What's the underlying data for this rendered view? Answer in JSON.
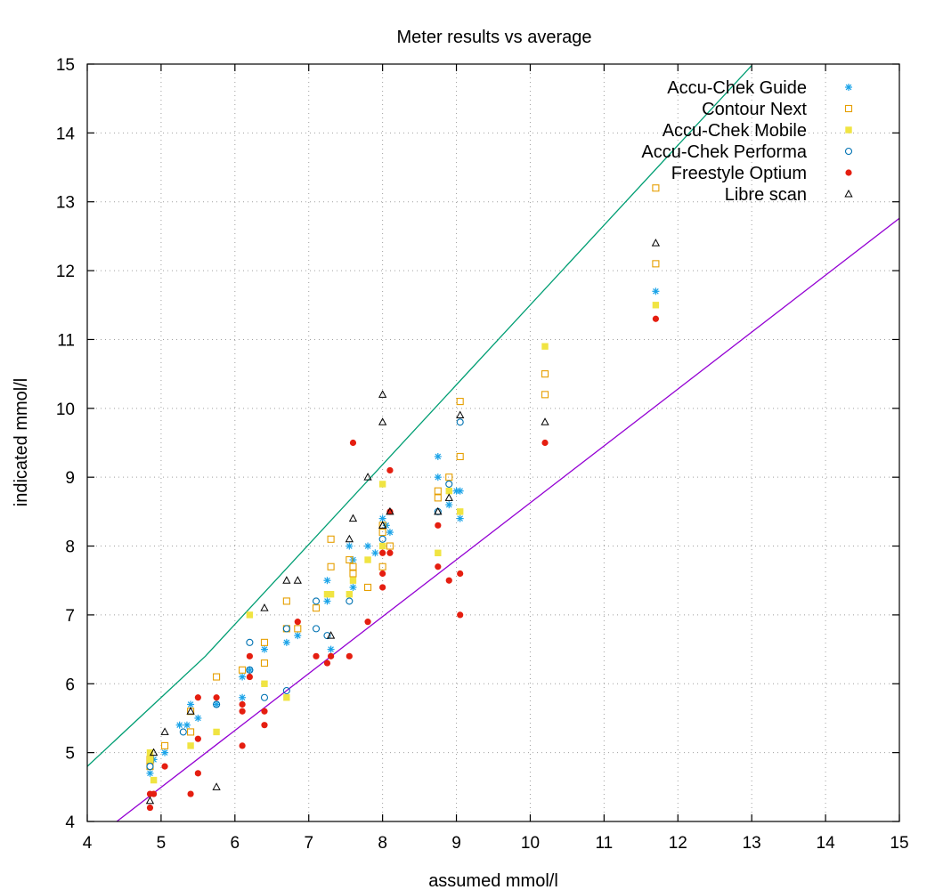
{
  "chart_data": {
    "type": "scatter",
    "title": "Meter results vs average",
    "xlabel": "assumed mmol/l",
    "ylabel": "indicated mmol/l",
    "xlim": [
      4,
      15
    ],
    "ylim": [
      4,
      15
    ],
    "xticks": [
      "4",
      "5",
      "6",
      "7",
      "8",
      "9",
      "10",
      "11",
      "12",
      "13",
      "14",
      "15"
    ],
    "yticks": [
      "4",
      "5",
      "6",
      "7",
      "8",
      "9",
      "10",
      "11",
      "12",
      "13",
      "14",
      "15"
    ],
    "grid": true,
    "legend_position": "top-right",
    "series": [
      {
        "name": "Accu-Chek Guide",
        "marker": "asterisk",
        "color": "#1aa3e8",
        "points": [
          [
            4.85,
            4.7
          ],
          [
            4.9,
            4.9
          ],
          [
            5.05,
            5.0
          ],
          [
            5.25,
            5.4
          ],
          [
            5.35,
            5.4
          ],
          [
            5.4,
            5.7
          ],
          [
            5.5,
            5.5
          ],
          [
            5.75,
            5.7
          ],
          [
            6.1,
            5.8
          ],
          [
            6.1,
            6.1
          ],
          [
            6.2,
            6.2
          ],
          [
            6.4,
            6.5
          ],
          [
            6.7,
            6.6
          ],
          [
            6.85,
            6.7
          ],
          [
            7.25,
            7.2
          ],
          [
            7.25,
            7.5
          ],
          [
            7.3,
            6.5
          ],
          [
            7.55,
            8.0
          ],
          [
            7.6,
            7.4
          ],
          [
            7.6,
            7.8
          ],
          [
            7.8,
            8.0
          ],
          [
            7.9,
            7.9
          ],
          [
            8.0,
            8.4
          ],
          [
            8.05,
            8.3
          ],
          [
            8.1,
            8.2
          ],
          [
            8.75,
            9.0
          ],
          [
            8.75,
            9.3
          ],
          [
            8.9,
            8.6
          ],
          [
            9.0,
            8.8
          ],
          [
            9.05,
            8.4
          ],
          [
            9.05,
            8.8
          ],
          [
            11.7,
            11.7
          ]
        ]
      },
      {
        "name": "Contour Next",
        "marker": "open-square",
        "color": "#e69f00",
        "points": [
          [
            4.85,
            4.8
          ],
          [
            4.85,
            4.9
          ],
          [
            5.05,
            5.1
          ],
          [
            5.4,
            5.3
          ],
          [
            5.4,
            5.6
          ],
          [
            5.75,
            6.1
          ],
          [
            6.1,
            6.2
          ],
          [
            6.4,
            6.6
          ],
          [
            6.4,
            6.3
          ],
          [
            6.7,
            6.8
          ],
          [
            6.7,
            7.2
          ],
          [
            6.85,
            6.8
          ],
          [
            7.1,
            7.1
          ],
          [
            7.3,
            7.7
          ],
          [
            7.3,
            8.1
          ],
          [
            7.55,
            7.8
          ],
          [
            7.6,
            7.7
          ],
          [
            7.6,
            7.6
          ],
          [
            7.8,
            7.4
          ],
          [
            8.0,
            7.7
          ],
          [
            8.0,
            8.3
          ],
          [
            8.0,
            8.2
          ],
          [
            8.1,
            8.0
          ],
          [
            8.75,
            8.7
          ],
          [
            8.75,
            8.8
          ],
          [
            8.9,
            9.0
          ],
          [
            9.05,
            9.3
          ],
          [
            9.05,
            10.1
          ],
          [
            10.2,
            10.2
          ],
          [
            10.2,
            10.5
          ],
          [
            11.7,
            12.1
          ],
          [
            11.7,
            13.2
          ]
        ]
      },
      {
        "name": "Accu-Chek Mobile",
        "marker": "filled-square",
        "color": "#f0e442",
        "points": [
          [
            4.85,
            5.0
          ],
          [
            4.85,
            4.9
          ],
          [
            4.9,
            4.6
          ],
          [
            5.4,
            5.1
          ],
          [
            5.75,
            5.3
          ],
          [
            6.2,
            7.0
          ],
          [
            6.4,
            6.0
          ],
          [
            6.7,
            5.8
          ],
          [
            7.25,
            7.3
          ],
          [
            7.3,
            7.3
          ],
          [
            7.55,
            7.3
          ],
          [
            7.6,
            7.5
          ],
          [
            7.8,
            7.8
          ],
          [
            8.0,
            8.9
          ],
          [
            8.0,
            8.0
          ],
          [
            8.75,
            7.9
          ],
          [
            8.9,
            8.8
          ],
          [
            9.05,
            8.5
          ],
          [
            10.2,
            10.9
          ],
          [
            11.7,
            11.5
          ]
        ]
      },
      {
        "name": "Accu-Chek Performa",
        "marker": "open-circle",
        "color": "#0072b2",
        "points": [
          [
            4.85,
            4.8
          ],
          [
            5.3,
            5.3
          ],
          [
            5.75,
            5.7
          ],
          [
            6.2,
            6.6
          ],
          [
            6.2,
            6.2
          ],
          [
            6.4,
            5.8
          ],
          [
            6.7,
            6.8
          ],
          [
            6.7,
            5.9
          ],
          [
            7.1,
            7.2
          ],
          [
            7.1,
            6.8
          ],
          [
            7.25,
            6.7
          ],
          [
            7.55,
            7.2
          ],
          [
            8.0,
            8.1
          ],
          [
            8.75,
            8.5
          ],
          [
            8.9,
            8.9
          ],
          [
            9.05,
            9.8
          ]
        ]
      },
      {
        "name": "Freestyle Optium",
        "marker": "filled-circle",
        "color": "#e51e10",
        "points": [
          [
            4.85,
            4.2
          ],
          [
            4.85,
            4.4
          ],
          [
            4.9,
            4.4
          ],
          [
            5.05,
            4.8
          ],
          [
            5.4,
            4.4
          ],
          [
            5.5,
            4.7
          ],
          [
            5.5,
            5.2
          ],
          [
            5.5,
            5.8
          ],
          [
            5.75,
            5.8
          ],
          [
            6.1,
            5.7
          ],
          [
            6.1,
            5.6
          ],
          [
            6.1,
            5.1
          ],
          [
            6.2,
            6.4
          ],
          [
            6.2,
            6.1
          ],
          [
            6.4,
            5.6
          ],
          [
            6.4,
            5.4
          ],
          [
            6.85,
            6.9
          ],
          [
            7.1,
            6.4
          ],
          [
            7.25,
            6.3
          ],
          [
            7.3,
            6.4
          ],
          [
            7.55,
            6.4
          ],
          [
            7.6,
            9.5
          ],
          [
            7.8,
            6.9
          ],
          [
            8.0,
            7.6
          ],
          [
            8.0,
            7.4
          ],
          [
            8.0,
            7.9
          ],
          [
            8.1,
            7.9
          ],
          [
            8.1,
            8.5
          ],
          [
            8.1,
            9.1
          ],
          [
            8.75,
            8.3
          ],
          [
            8.75,
            7.7
          ],
          [
            8.9,
            7.5
          ],
          [
            9.05,
            7.6
          ],
          [
            9.05,
            7.0
          ],
          [
            10.2,
            9.5
          ],
          [
            11.7,
            11.3
          ]
        ]
      },
      {
        "name": "Libre scan",
        "marker": "open-triangle",
        "color": "#000000",
        "points": [
          [
            4.85,
            4.3
          ],
          [
            4.9,
            5.0
          ],
          [
            5.05,
            5.3
          ],
          [
            5.4,
            5.6
          ],
          [
            5.75,
            4.5
          ],
          [
            6.4,
            7.1
          ],
          [
            6.7,
            7.5
          ],
          [
            6.85,
            7.5
          ],
          [
            7.3,
            6.7
          ],
          [
            7.55,
            8.1
          ],
          [
            7.6,
            8.4
          ],
          [
            7.8,
            9.0
          ],
          [
            8.0,
            8.3
          ],
          [
            8.0,
            9.8
          ],
          [
            8.0,
            10.2
          ],
          [
            8.1,
            8.5
          ],
          [
            8.75,
            8.5
          ],
          [
            8.9,
            8.7
          ],
          [
            9.05,
            9.9
          ],
          [
            10.2,
            9.8
          ],
          [
            11.7,
            12.4
          ]
        ]
      }
    ],
    "reference_lines": [
      {
        "color": "#009e73",
        "points": [
          [
            4.0,
            4.8
          ],
          [
            5.6,
            6.4
          ],
          [
            13.0,
            14.98
          ]
        ]
      },
      {
        "color": "#9400d3",
        "points": [
          [
            4.4,
            4.0
          ],
          [
            15.0,
            12.76
          ]
        ]
      }
    ]
  }
}
